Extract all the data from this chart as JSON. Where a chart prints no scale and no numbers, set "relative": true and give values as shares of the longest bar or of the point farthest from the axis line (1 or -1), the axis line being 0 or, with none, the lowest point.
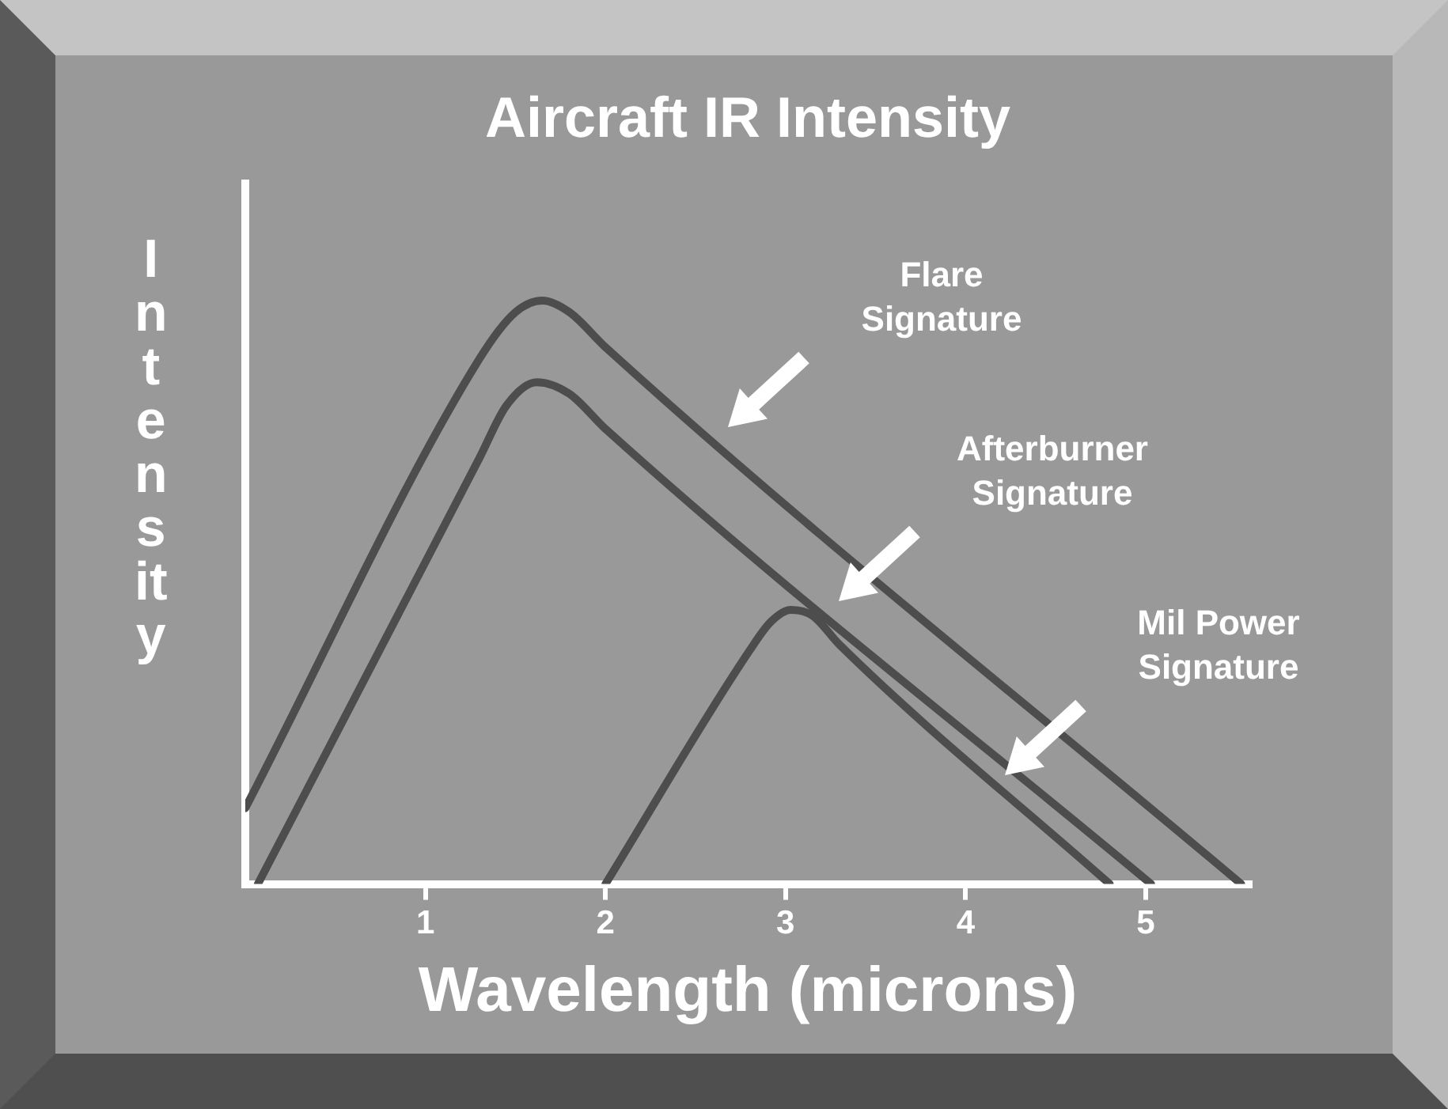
{
  "chart_data": {
    "type": "line",
    "title": "Aircraft IR Intensity",
    "xlabel": "Wavelength (microns)",
    "ylabel": "Intensity",
    "relative": true,
    "xlim": [
      0,
      5.58
    ],
    "xticks": [
      1,
      2,
      3,
      4,
      5
    ],
    "grid": false,
    "legend": false,
    "marker": "none",
    "line_style": "solid",
    "series": [
      {
        "color": "#4d4d4d",
        "x": [
          0,
          1.3,
          1.5,
          1.65,
          1.8,
          2.0,
          5.53
        ],
        "values": [
          0.13,
          0.9,
          0.98,
          1.0,
          0.98,
          0.92,
          0
        ]
      },
      {
        "color": "#4d4d4d",
        "x": [
          0.07,
          1.3,
          1.45,
          1.62,
          1.8,
          2.0,
          5.03
        ],
        "values": [
          0,
          0.73,
          0.82,
          0.86,
          0.84,
          0.78,
          0
        ]
      },
      {
        "color": "#4d4d4d",
        "x": [
          2.0,
          2.8,
          2.92,
          3.03,
          3.15,
          3.3,
          4.8
        ],
        "values": [
          0,
          0.4,
          0.45,
          0.47,
          0.46,
          0.41,
          0
        ]
      }
    ],
    "annotations": [
      "Flare\nSignature",
      "Afterburner\nSignature",
      "Mil Power\nSignature"
    ]
  }
}
